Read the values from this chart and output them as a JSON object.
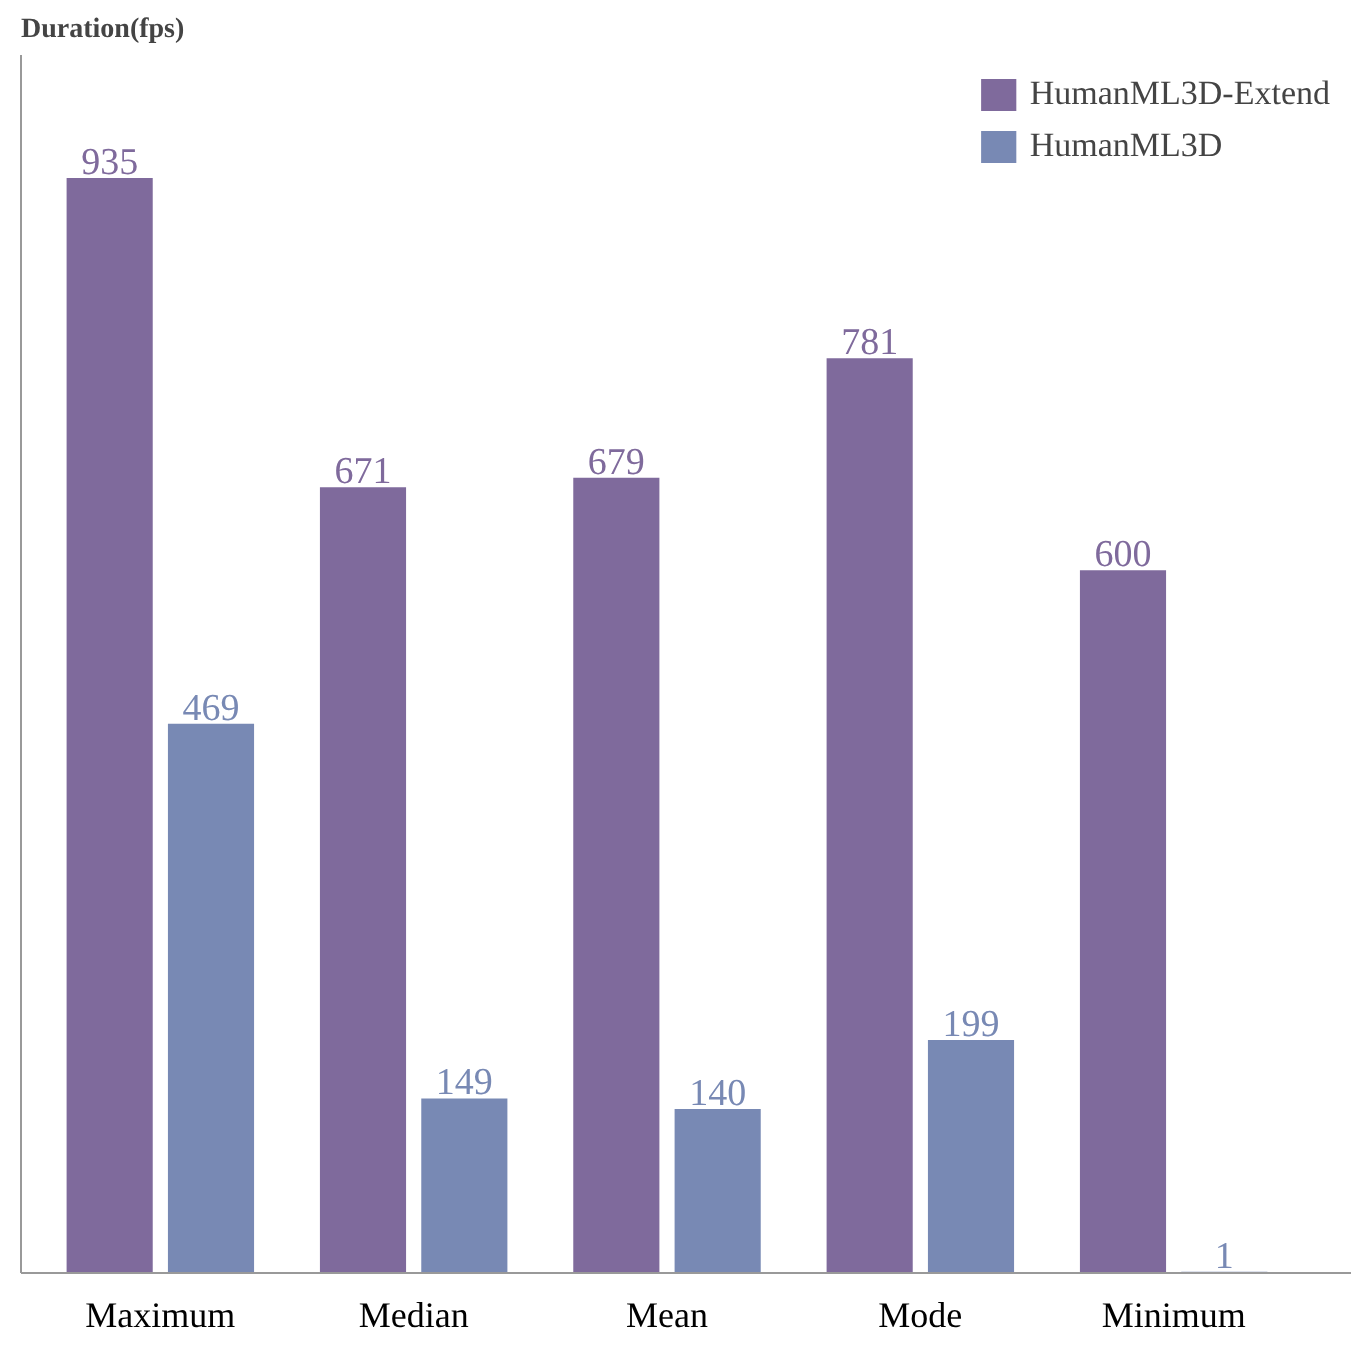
{
  "chart_data": {
    "type": "bar",
    "ylabel": "Duration(fps)",
    "categories": [
      "Maximum",
      "Median",
      "Mean",
      "Mode",
      "Minimum"
    ],
    "series": [
      {
        "name": "HumanML3D-Extend",
        "color": "#7f6a9c",
        "values": [
          935,
          671,
          679,
          781,
          600
        ]
      },
      {
        "name": "HumanML3D",
        "color": "#7889b4",
        "values": [
          469,
          149,
          140,
          199,
          1
        ]
      }
    ],
    "ylim": [
      0,
      1040
    ],
    "data_labels": true,
    "legend": "top right",
    "grid": false
  }
}
